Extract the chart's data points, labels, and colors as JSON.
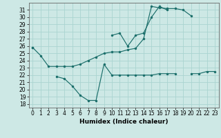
{
  "xlabel": "Humidex (Indice chaleur)",
  "background_color": "#cde8e5",
  "grid_color": "#aad4d0",
  "line_color": "#1a6e6a",
  "xlim": [
    -0.5,
    23.5
  ],
  "ylim": [
    17.5,
    32
  ],
  "yticks": [
    18,
    19,
    20,
    21,
    22,
    23,
    24,
    25,
    26,
    27,
    28,
    29,
    30,
    31
  ],
  "xticks": [
    0,
    1,
    2,
    3,
    4,
    5,
    6,
    7,
    8,
    9,
    10,
    11,
    12,
    13,
    14,
    15,
    16,
    17,
    18,
    19,
    20,
    21,
    22,
    23
  ],
  "line1_y": [
    25.8,
    24.7,
    23.2,
    23.2,
    23.2,
    23.2,
    23.5,
    24.0,
    24.5,
    25.0,
    25.2,
    25.2,
    25.5,
    25.7,
    27.0,
    31.5,
    31.3,
    31.2,
    31.2,
    31.0,
    30.2,
    null,
    null,
    null
  ],
  "line2_y": [
    null,
    null,
    null,
    null,
    null,
    null,
    null,
    null,
    null,
    null,
    27.5,
    27.8,
    26.0,
    27.5,
    27.8,
    30.0,
    31.5,
    31.0,
    null,
    null,
    null,
    null,
    null,
    null
  ],
  "line3_y": [
    25.8,
    null,
    null,
    21.8,
    21.5,
    20.5,
    19.2,
    18.5,
    18.5,
    23.5,
    22.0,
    22.0,
    22.0,
    22.0,
    22.0,
    22.0,
    22.2,
    22.2,
    22.2,
    null,
    22.2,
    22.2,
    22.5,
    22.5
  ]
}
